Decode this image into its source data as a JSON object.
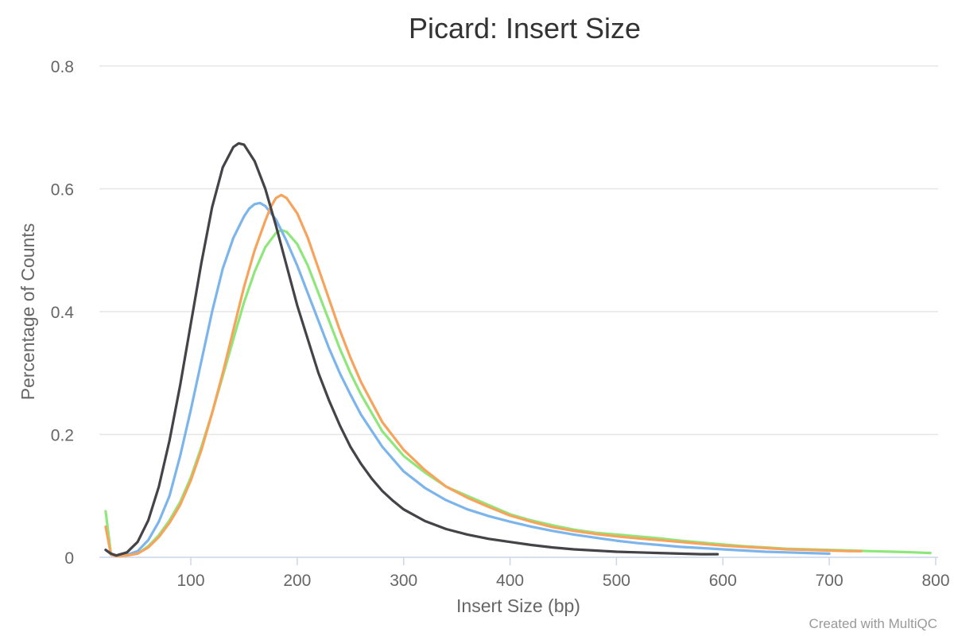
{
  "chart_data": {
    "type": "line",
    "title": "Picard: Insert Size",
    "xlabel": "Insert Size (bp)",
    "ylabel": "Percentage of Counts",
    "xlim": [
      20,
      800
    ],
    "ylim": [
      0,
      0.8
    ],
    "x_ticks": [
      100,
      200,
      300,
      400,
      500,
      600,
      700,
      800
    ],
    "y_ticks": [
      0,
      0.2,
      0.4,
      0.6,
      0.8
    ],
    "grid": true,
    "legend": "none",
    "credit": "Created with MultiQC",
    "series": [
      {
        "color": "#8ee77a",
        "points": [
          [
            20,
            0.075
          ],
          [
            25,
            0.005
          ],
          [
            30,
            0.002
          ],
          [
            40,
            0.003
          ],
          [
            50,
            0.006
          ],
          [
            60,
            0.018
          ],
          [
            70,
            0.036
          ],
          [
            80,
            0.06
          ],
          [
            90,
            0.09
          ],
          [
            100,
            0.13
          ],
          [
            110,
            0.18
          ],
          [
            120,
            0.235
          ],
          [
            130,
            0.295
          ],
          [
            140,
            0.355
          ],
          [
            150,
            0.415
          ],
          [
            160,
            0.465
          ],
          [
            170,
            0.505
          ],
          [
            180,
            0.528
          ],
          [
            185,
            0.533
          ],
          [
            190,
            0.53
          ],
          [
            200,
            0.51
          ],
          [
            210,
            0.475
          ],
          [
            220,
            0.43
          ],
          [
            230,
            0.385
          ],
          [
            240,
            0.34
          ],
          [
            250,
            0.3
          ],
          [
            260,
            0.265
          ],
          [
            280,
            0.205
          ],
          [
            300,
            0.165
          ],
          [
            320,
            0.138
          ],
          [
            340,
            0.115
          ],
          [
            360,
            0.1
          ],
          [
            380,
            0.085
          ],
          [
            400,
            0.07
          ],
          [
            420,
            0.06
          ],
          [
            440,
            0.052
          ],
          [
            460,
            0.045
          ],
          [
            480,
            0.04
          ],
          [
            500,
            0.037
          ],
          [
            520,
            0.034
          ],
          [
            540,
            0.031
          ],
          [
            560,
            0.027
          ],
          [
            580,
            0.024
          ],
          [
            600,
            0.021
          ],
          [
            620,
            0.018
          ],
          [
            640,
            0.016
          ],
          [
            660,
            0.014
          ],
          [
            680,
            0.013
          ],
          [
            700,
            0.012
          ],
          [
            720,
            0.011
          ],
          [
            740,
            0.01
          ],
          [
            760,
            0.009
          ],
          [
            780,
            0.008
          ],
          [
            795,
            0.007
          ]
        ]
      },
      {
        "color": "#7cb5ec",
        "points": [
          [
            20,
            0.012
          ],
          [
            25,
            0.005
          ],
          [
            30,
            0.002
          ],
          [
            40,
            0.004
          ],
          [
            50,
            0.01
          ],
          [
            60,
            0.028
          ],
          [
            70,
            0.058
          ],
          [
            80,
            0.1
          ],
          [
            90,
            0.165
          ],
          [
            100,
            0.24
          ],
          [
            110,
            0.32
          ],
          [
            120,
            0.4
          ],
          [
            130,
            0.47
          ],
          [
            140,
            0.52
          ],
          [
            150,
            0.555
          ],
          [
            155,
            0.568
          ],
          [
            160,
            0.575
          ],
          [
            165,
            0.577
          ],
          [
            170,
            0.572
          ],
          [
            180,
            0.55
          ],
          [
            190,
            0.515
          ],
          [
            200,
            0.475
          ],
          [
            210,
            0.43
          ],
          [
            220,
            0.385
          ],
          [
            230,
            0.34
          ],
          [
            240,
            0.3
          ],
          [
            250,
            0.265
          ],
          [
            260,
            0.232
          ],
          [
            280,
            0.18
          ],
          [
            300,
            0.14
          ],
          [
            320,
            0.113
          ],
          [
            340,
            0.093
          ],
          [
            360,
            0.078
          ],
          [
            380,
            0.067
          ],
          [
            400,
            0.058
          ],
          [
            420,
            0.05
          ],
          [
            440,
            0.043
          ],
          [
            460,
            0.037
          ],
          [
            480,
            0.032
          ],
          [
            500,
            0.027
          ],
          [
            520,
            0.023
          ],
          [
            540,
            0.02
          ],
          [
            560,
            0.017
          ],
          [
            580,
            0.015
          ],
          [
            600,
            0.013
          ],
          [
            620,
            0.011
          ],
          [
            640,
            0.009
          ],
          [
            660,
            0.008
          ],
          [
            680,
            0.007
          ],
          [
            700,
            0.006
          ]
        ]
      },
      {
        "color": "#f7a35c",
        "points": [
          [
            20,
            0.05
          ],
          [
            25,
            0.004
          ],
          [
            30,
            0.002
          ],
          [
            40,
            0.003
          ],
          [
            50,
            0.006
          ],
          [
            60,
            0.016
          ],
          [
            70,
            0.033
          ],
          [
            80,
            0.056
          ],
          [
            90,
            0.085
          ],
          [
            100,
            0.125
          ],
          [
            110,
            0.175
          ],
          [
            120,
            0.235
          ],
          [
            130,
            0.3
          ],
          [
            140,
            0.37
          ],
          [
            150,
            0.44
          ],
          [
            160,
            0.5
          ],
          [
            170,
            0.548
          ],
          [
            175,
            0.57
          ],
          [
            180,
            0.585
          ],
          [
            185,
            0.59
          ],
          [
            190,
            0.585
          ],
          [
            200,
            0.56
          ],
          [
            210,
            0.52
          ],
          [
            220,
            0.47
          ],
          [
            230,
            0.42
          ],
          [
            240,
            0.37
          ],
          [
            250,
            0.325
          ],
          [
            260,
            0.285
          ],
          [
            280,
            0.22
          ],
          [
            300,
            0.175
          ],
          [
            320,
            0.142
          ],
          [
            340,
            0.115
          ],
          [
            360,
            0.097
          ],
          [
            380,
            0.082
          ],
          [
            400,
            0.068
          ],
          [
            420,
            0.058
          ],
          [
            440,
            0.049
          ],
          [
            460,
            0.043
          ],
          [
            480,
            0.038
          ],
          [
            500,
            0.034
          ],
          [
            520,
            0.031
          ],
          [
            540,
            0.028
          ],
          [
            560,
            0.025
          ],
          [
            580,
            0.022
          ],
          [
            600,
            0.019
          ],
          [
            620,
            0.017
          ],
          [
            640,
            0.015
          ],
          [
            660,
            0.013
          ],
          [
            680,
            0.012
          ],
          [
            700,
            0.011
          ],
          [
            720,
            0.01
          ],
          [
            730,
            0.01
          ]
        ]
      },
      {
        "color": "#434348",
        "points": [
          [
            20,
            0.012
          ],
          [
            25,
            0.006
          ],
          [
            30,
            0.003
          ],
          [
            40,
            0.008
          ],
          [
            50,
            0.025
          ],
          [
            60,
            0.06
          ],
          [
            70,
            0.115
          ],
          [
            80,
            0.19
          ],
          [
            90,
            0.28
          ],
          [
            100,
            0.38
          ],
          [
            110,
            0.48
          ],
          [
            120,
            0.57
          ],
          [
            130,
            0.635
          ],
          [
            140,
            0.668
          ],
          [
            145,
            0.674
          ],
          [
            150,
            0.672
          ],
          [
            160,
            0.645
          ],
          [
            170,
            0.6
          ],
          [
            180,
            0.54
          ],
          [
            190,
            0.475
          ],
          [
            200,
            0.41
          ],
          [
            210,
            0.355
          ],
          [
            220,
            0.3
          ],
          [
            230,
            0.255
          ],
          [
            240,
            0.215
          ],
          [
            250,
            0.18
          ],
          [
            260,
            0.152
          ],
          [
            270,
            0.128
          ],
          [
            280,
            0.108
          ],
          [
            290,
            0.092
          ],
          [
            300,
            0.078
          ],
          [
            320,
            0.059
          ],
          [
            340,
            0.046
          ],
          [
            360,
            0.037
          ],
          [
            380,
            0.03
          ],
          [
            400,
            0.025
          ],
          [
            420,
            0.02
          ],
          [
            440,
            0.016
          ],
          [
            460,
            0.013
          ],
          [
            480,
            0.011
          ],
          [
            500,
            0.009
          ],
          [
            520,
            0.008
          ],
          [
            540,
            0.007
          ],
          [
            560,
            0.006
          ],
          [
            580,
            0.005
          ],
          [
            595,
            0.005
          ]
        ]
      }
    ]
  }
}
